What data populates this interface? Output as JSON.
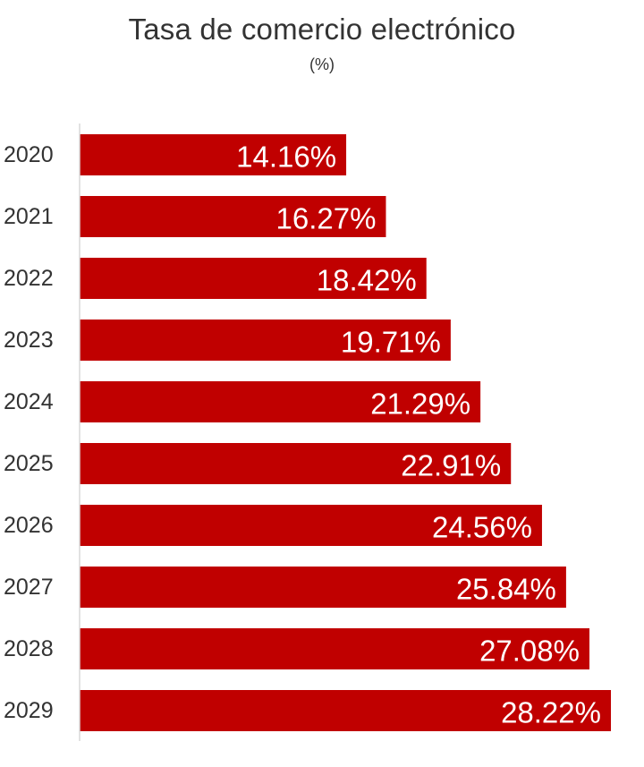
{
  "chart_data": {
    "type": "bar",
    "orientation": "horizontal",
    "title": "Tasa de comercio electrónico",
    "subtitle": "(%)",
    "categories": [
      "2020",
      "2021",
      "2022",
      "2023",
      "2024",
      "2025",
      "2026",
      "2027",
      "2028",
      "2029"
    ],
    "values": [
      14.16,
      16.27,
      18.42,
      19.71,
      21.29,
      22.91,
      24.56,
      25.84,
      27.08,
      28.22
    ],
    "data_labels": [
      "14.16%",
      "16.27%",
      "18.42%",
      "19.71%",
      "21.29%",
      "22.91%",
      "24.56%",
      "25.84%",
      "27.08%",
      "28.22%"
    ],
    "xlabel": "",
    "ylabel": "",
    "xlim": [
      0,
      28.22
    ],
    "grid": false,
    "legend": "none",
    "bar_color": "#c00000",
    "axis_color": "#d9d9d9"
  }
}
